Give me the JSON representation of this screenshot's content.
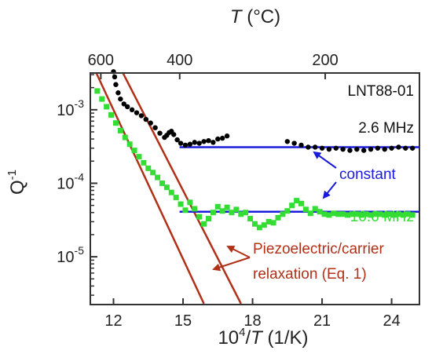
{
  "chart_data": {
    "type": "scatter",
    "panel_label": "LNT88-01",
    "xlabel": {
      "prefix": "10",
      "sup": "4",
      "slash": "/",
      "var": "T",
      "unit": " (1/K)"
    },
    "ylabel": {
      "base": "Q",
      "sup": "-1"
    },
    "top_axis": {
      "var": "T",
      "unit": " (°C)",
      "ticks": [
        600,
        400,
        200
      ]
    },
    "xlim": [
      11.0,
      25.2
    ],
    "ylim_log10": [
      -5.65,
      -2.5
    ],
    "x_ticks": [
      12,
      15,
      18,
      21,
      24
    ],
    "y_ticks": [
      {
        "base": "10",
        "exp": "-3",
        "value": 0.001
      },
      {
        "base": "10",
        "exp": "-4",
        "value": 0.0001
      },
      {
        "base": "10",
        "exp": "-5",
        "value": 1e-05
      }
    ],
    "series": [
      {
        "name": "2.6 MHz",
        "color": "#000000",
        "x": [
          12.0,
          12.05,
          12.1,
          12.2,
          12.3,
          12.45,
          12.6,
          12.8,
          13.0,
          13.2,
          13.4,
          13.6,
          13.8,
          14.0,
          14.2,
          14.3,
          14.4,
          14.5,
          14.6,
          14.75,
          14.9,
          15.1,
          15.3,
          15.5,
          15.7,
          15.9,
          16.1,
          16.3,
          16.5,
          16.7,
          16.9,
          19.5,
          19.8,
          20.1,
          20.4,
          20.7,
          21.0,
          21.3,
          21.6,
          21.9,
          22.2,
          22.5,
          22.8,
          23.1,
          23.4,
          23.7,
          24.0,
          24.3,
          24.6,
          24.9
        ],
        "y": [
          0.0033,
          0.0028,
          0.0022,
          0.0017,
          0.0014,
          0.0012,
          0.0011,
          0.001,
          0.00091,
          0.00083,
          0.00074,
          0.00066,
          0.00057,
          0.00048,
          0.00042,
          0.00045,
          0.00049,
          0.00051,
          0.00046,
          0.00039,
          0.00035,
          0.00033,
          0.00034,
          0.00036,
          0.00035,
          0.00037,
          0.00038,
          0.00036,
          0.0004,
          0.00041,
          0.00044,
          0.00037,
          0.00035,
          0.00033,
          0.00031,
          0.00031,
          0.0003,
          0.00029,
          0.0003,
          0.00029,
          0.00028,
          0.00029,
          0.00028,
          0.00029,
          0.0003,
          0.00029,
          0.0003,
          0.00031,
          0.0003,
          0.0003
        ]
      },
      {
        "name": "10.6 MHz",
        "color": "#33dd33",
        "x": [
          11.3,
          11.5,
          11.7,
          11.9,
          12.1,
          12.3,
          12.5,
          12.7,
          12.9,
          13.1,
          13.3,
          13.5,
          13.7,
          13.9,
          14.1,
          14.3,
          14.5,
          14.7,
          14.9,
          15.1,
          15.3,
          15.5,
          15.7,
          15.9,
          16.1,
          16.3,
          16.5,
          16.7,
          16.9,
          17.1,
          17.3,
          17.5,
          17.7,
          17.9,
          18.1,
          18.3,
          18.5,
          18.7,
          18.9,
          19.1,
          19.3,
          19.5,
          19.7,
          19.9,
          20.1,
          20.3,
          20.5,
          20.7,
          20.9,
          21.1,
          21.3,
          21.5,
          21.7,
          21.9,
          22.1,
          22.3,
          22.5,
          22.7,
          22.9,
          23.1,
          23.3,
          23.5,
          23.7,
          23.9,
          24.1,
          24.3,
          24.5,
          24.7,
          24.9
        ],
        "y": [
          0.0018,
          0.0014,
          0.0011,
          0.00085,
          0.00066,
          0.00052,
          0.00042,
          0.00034,
          0.00028,
          0.00023,
          0.00019,
          0.00016,
          0.00014,
          0.00012,
          0.0001,
          8.8e-05,
          7.5e-05,
          6.4e-05,
          5.2e-05,
          4.3e-05,
          5.5e-05,
          4.5e-05,
          3.5e-05,
          2.8e-05,
          3.3e-05,
          4e-05,
          4.8e-05,
          4.2e-05,
          4.7e-05,
          4e-05,
          4.4e-05,
          3.8e-05,
          4e-05,
          3.3e-05,
          2.8e-05,
          2.5e-05,
          2.7e-05,
          3e-05,
          2.9e-05,
          3.4e-05,
          3.8e-05,
          4.2e-05,
          5e-05,
          5.8e-05,
          5.3e-05,
          4.4e-05,
          3.9e-05,
          4.5e-05,
          4.1e-05,
          3.8e-05,
          3.7e-05,
          3.9e-05,
          3.8e-05,
          3.8e-05,
          3.7e-05,
          3.8e-05,
          3.8e-05,
          3.7e-05,
          3.8e-05,
          3.7e-05,
          3.8e-05,
          3.8e-05,
          3.7e-05,
          3.8e-05,
          3.7e-05,
          3.8e-05,
          3.7e-05,
          3.8e-05,
          3.7e-05
        ]
      }
    ],
    "constant_lines": [
      {
        "x": [
          14.85,
          25.2
        ],
        "y": 0.00031,
        "color": "#1a1add"
      },
      {
        "x": [
          14.85,
          25.2
        ],
        "y": 4.1e-05,
        "color": "#1a1add"
      }
    ],
    "relaxation_lines": [
      {
        "x": [
          11.25,
          15.9
        ],
        "y": [
          0.0032,
          2.3e-06
        ],
        "color": "#b03018"
      },
      {
        "x": [
          12.4,
          17.5
        ],
        "y": [
          0.0032,
          2.3e-06
        ],
        "color": "#b03018"
      }
    ],
    "annotations": {
      "label_2_6": "2.6 MHz",
      "label_10_6": "10.6 MHz",
      "constant": "constant",
      "relax_line1": "Piezoelectric/carrier",
      "relax_line2": "relaxation (Eq. 1)"
    },
    "colors": {
      "blue": "#1a1add",
      "red": "#b03018",
      "green": "#33dd33",
      "black": "#000000"
    }
  }
}
